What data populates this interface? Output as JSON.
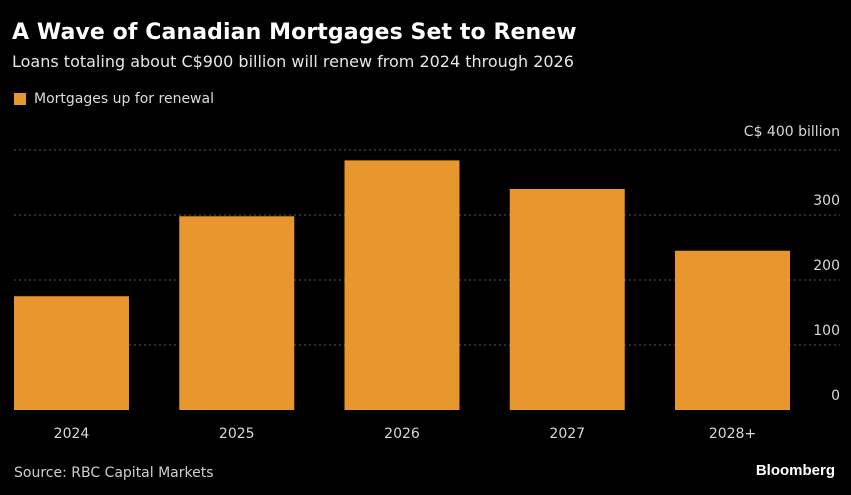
{
  "title": "A Wave of Canadian Mortgages Set to Renew",
  "subtitle": "Loans totaling about C$900 billion will renew from 2024 through 2026",
  "legend_label": "Mortgages up for renewal",
  "source": "Source: RBC Capital Markets",
  "brand": "Bloomberg",
  "colors": {
    "bar": "#e8962e",
    "background": "#000000",
    "grid": "#5a5a5a"
  },
  "chart_data": {
    "type": "bar",
    "categories": [
      "2024",
      "2025",
      "2026",
      "2027",
      "2028+"
    ],
    "series": [
      {
        "name": "Mortgages up for renewal",
        "values": [
          175,
          298,
          384,
          340,
          245
        ]
      }
    ],
    "yticks": [
      0,
      100,
      200,
      300,
      400
    ],
    "ytick_labels": [
      "0",
      "100",
      "200",
      "300",
      "C$ 400 billion"
    ],
    "ylim": [
      0,
      400
    ],
    "y_axis_position": "right",
    "grid": true,
    "legend_position": "top-left"
  }
}
